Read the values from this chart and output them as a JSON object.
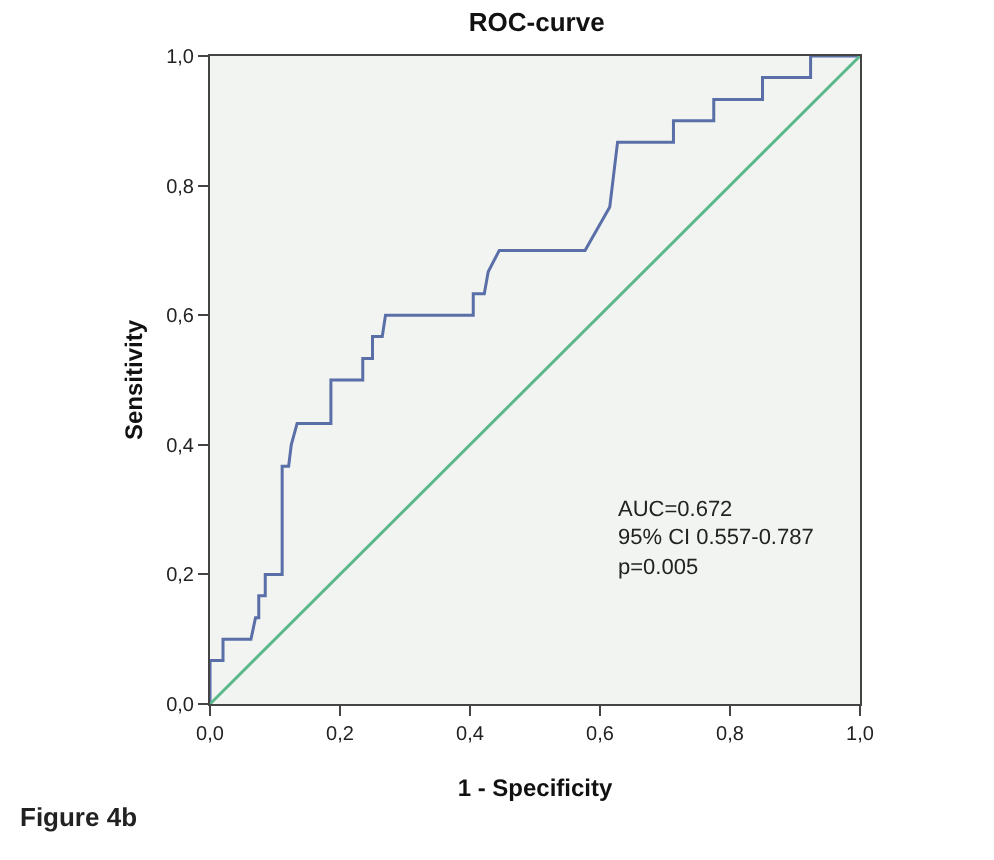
{
  "chart_data": {
    "type": "line",
    "title": "ROC-curve",
    "xlabel": "1 - Specificity",
    "ylabel": "Sensitivity",
    "annotations": [
      "AUC=0.672",
      "95% CI 0.557-0.787",
      "p=0.005",
      "Figure 4b"
    ],
    "series": [
      {
        "color": "#5a6fa8",
        "x": [
          0,
          0,
          0.02,
          0.02,
          0.063,
          0.07,
          0.075,
          0.075,
          0.085,
          0.085,
          0.111,
          0.111,
          0.121,
          0.125,
          0.134,
          0.186,
          0.186,
          0.235,
          0.235,
          0.25,
          0.25,
          0.265,
          0.27,
          0.405,
          0.405,
          0.422,
          0.428,
          0.445,
          0.577,
          0.615,
          0.627,
          0.713,
          0.713,
          0.775,
          0.775,
          0.85,
          0.85,
          0.924,
          0.924,
          1
        ],
        "values": [
          0,
          0.067,
          0.067,
          0.1,
          0.1,
          0.133,
          0.133,
          0.167,
          0.167,
          0.2,
          0.2,
          0.367,
          0.367,
          0.4,
          0.433,
          0.433,
          0.5,
          0.5,
          0.533,
          0.533,
          0.567,
          0.567,
          0.6,
          0.6,
          0.633,
          0.633,
          0.667,
          0.7,
          0.7,
          0.767,
          0.867,
          0.867,
          0.9,
          0.9,
          0.933,
          0.933,
          0.967,
          0.967,
          1,
          1
        ]
      },
      {
        "color": "#5cb88a",
        "x": [
          0,
          1
        ],
        "values": [
          0,
          1
        ]
      }
    ],
    "xlim": [
      0,
      1
    ],
    "ylim": [
      0,
      1
    ],
    "xticks": [
      {
        "value": 0,
        "label": "0,0"
      },
      {
        "value": 0.2,
        "label": "0,2"
      },
      {
        "value": 0.4,
        "label": "0,4"
      },
      {
        "value": 0.6,
        "label": "0,6"
      },
      {
        "value": 0.8,
        "label": "0,8"
      },
      {
        "value": 1,
        "label": "1,0"
      }
    ],
    "yticks": [
      {
        "value": 0,
        "label": "0,0"
      },
      {
        "value": 0.2,
        "label": "0,2"
      },
      {
        "value": 0.4,
        "label": "0,4"
      },
      {
        "value": 0.6,
        "label": "0,6"
      },
      {
        "value": 0.8,
        "label": "0,8"
      },
      {
        "value": 1,
        "label": "1,0"
      }
    ],
    "grid": false,
    "marker": "none",
    "line_style": "solid"
  }
}
